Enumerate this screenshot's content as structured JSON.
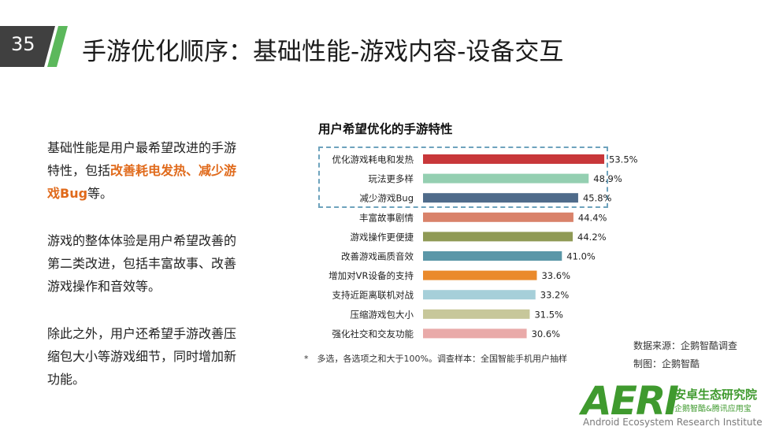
{
  "slide": {
    "number": "35"
  },
  "title": "手游优化顺序：基础性能-游戏内容-设备交互",
  "body": {
    "p1": {
      "pre": "基础性能是用户最希望改进的手游特性，包括",
      "highlight": "改善耗电发热、减少游戏Bug",
      "post": "等。"
    },
    "p2": "游戏的整体体验是用户希望改善的第二类改进，包括丰富故事、改善游戏操作和音效等。",
    "p3": "除此之外，用户还希望手游改善压缩包大小等游戏细节，同时增加新功能。"
  },
  "footnote": "*　多选，各选项之和大于100%。调查样本：全国智能手机用户抽样",
  "source": {
    "line1": "数据来源：企鹅智酷调查",
    "line2": "制图：企鹅智酷"
  },
  "logo": {
    "word": "AERI",
    "cn_name": "安卓生态研究院",
    "cn_sub": "企鹅智酷&腾讯应用宝",
    "en_name": "Android Ecosystem Research Institute"
  },
  "chart_data": {
    "type": "bar",
    "orientation": "horizontal",
    "title": "用户希望优化的手游特性",
    "categories": [
      "优化游戏耗电和发热",
      "玩法更多样",
      "减少游戏Bug",
      "丰富故事剧情",
      "游戏操作更便捷",
      "改善游戏画质音效",
      "增加对VR设备的支持",
      "支持近距离联机对战",
      "压缩游戏包大小",
      "强化社交和交友功能"
    ],
    "values": [
      53.5,
      48.9,
      45.8,
      44.4,
      44.2,
      41.0,
      33.6,
      33.2,
      31.5,
      30.6
    ],
    "value_labels": [
      "53.5%",
      "48.9%",
      "45.8%",
      "44.4%",
      "44.2%",
      "41.0%",
      "33.6%",
      "33.2%",
      "31.5%",
      "30.6%"
    ],
    "colors": [
      "#c8373a",
      "#94cfb1",
      "#4f6b8a",
      "#d9826a",
      "#8f9a55",
      "#5b97a8",
      "#ea8a2c",
      "#a6cfd9",
      "#c7c79a",
      "#e9aaa9"
    ],
    "xlim": [
      0,
      60
    ],
    "grid": false,
    "legend": "none",
    "highlighted_top": 3
  }
}
